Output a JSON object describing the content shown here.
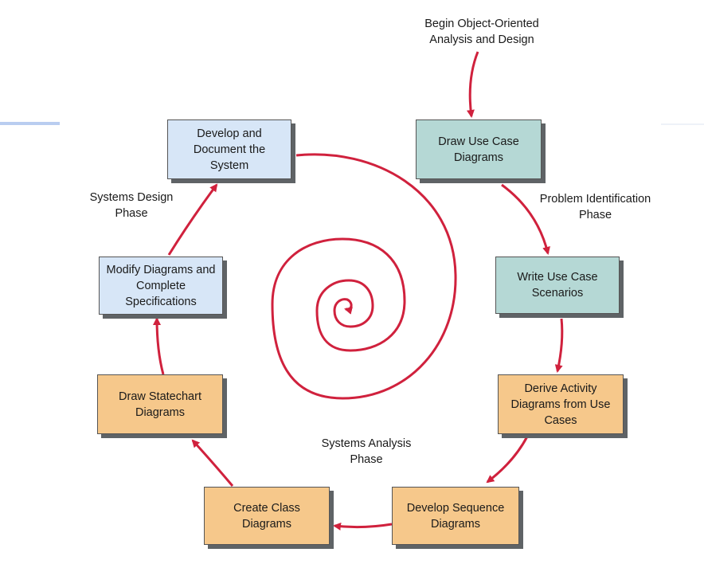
{
  "start_label": "Begin Object-Oriented\nAnalysis and Design",
  "phases": {
    "design": "Systems Design\nPhase",
    "problem": "Problem Identification\nPhase",
    "analysis": "Systems Analysis\nPhase"
  },
  "steps": {
    "draw_use_case": "Draw Use Case\nDiagrams",
    "write_scenarios": "Write Use Case\nScenarios",
    "derive_activity": "Derive Activity\nDiagrams from Use\nCases",
    "develop_sequence": "Develop Sequence\nDiagrams",
    "create_class": "Create Class\nDiagrams",
    "draw_statechart": "Draw Statechart\nDiagrams",
    "modify_diagrams": "Modify Diagrams and\nComplete\nSpecifications",
    "develop_system": "Develop and\nDocument the\nSystem"
  },
  "colors": {
    "arrow": "#d0213d",
    "design_fill": "#d7e6f7",
    "problem_fill": "#b5d8d5",
    "analysis_fill": "#f6c88b"
  }
}
